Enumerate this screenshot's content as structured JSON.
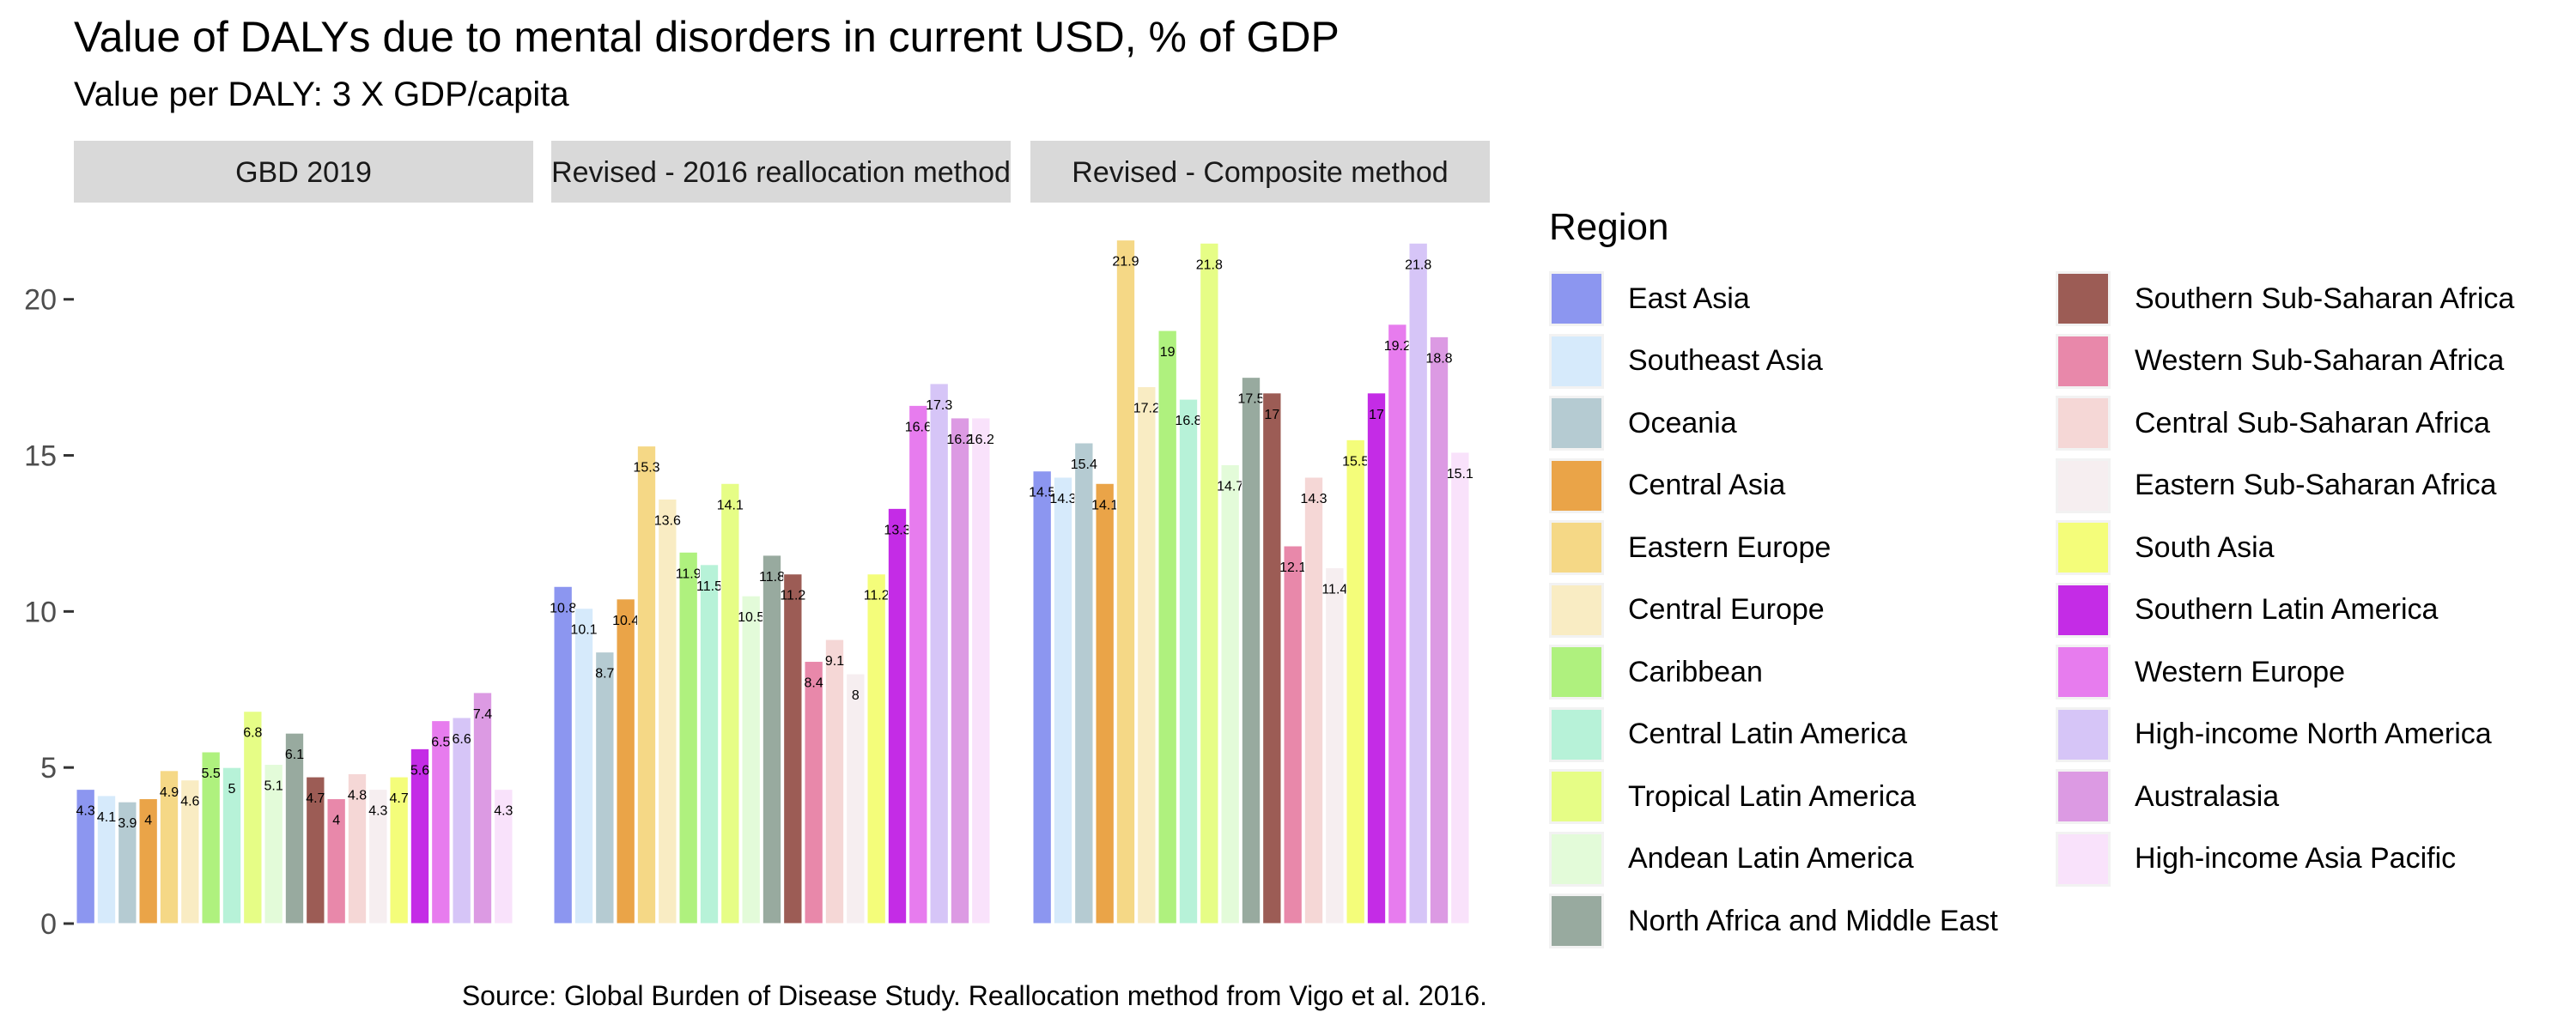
{
  "chart_data": {
    "type": "bar",
    "title": "Value of DALYs due to mental disorders in current USD, % of GDP",
    "subtitle": "Value per DALY: 3 X GDP/capita",
    "caption": "Source: Global Burden of Disease Study. Reallocation method from Vigo et al. 2016.",
    "xlabel": "",
    "ylabel": "",
    "ylim": [
      0,
      22
    ],
    "y_ticks": [
      "0",
      "5",
      "10",
      "15",
      "20"
    ],
    "grid": false,
    "legend_title": "Region",
    "legend_position": "right",
    "categories": [
      "East Asia",
      "Southeast Asia",
      "Oceania",
      "Central Asia",
      "Eastern Europe",
      "Central Europe",
      "Caribbean",
      "Central Latin America",
      "Tropical Latin America",
      "Andean Latin America",
      "North Africa and Middle East",
      "Southern Sub-Saharan Africa",
      "Western Sub-Saharan Africa",
      "Central Sub-Saharan Africa",
      "Eastern Sub-Saharan Africa",
      "South Asia",
      "Southern Latin America",
      "Western Europe",
      "High-income North America",
      "Australasia",
      "High-income Asia Pacific"
    ],
    "colors": [
      "#8c96f0",
      "#d6eafb",
      "#b5cbd2",
      "#eaa448",
      "#f5d886",
      "#f9ecc3",
      "#aff17e",
      "#b7f2d8",
      "#e6fd86",
      "#e3fbd9",
      "#98aa9f",
      "#9c5c55",
      "#e888aa",
      "#f5d7d6",
      "#f6eef0",
      "#f4fd7a",
      "#c42ce6",
      "#e77cee",
      "#d6c5f7",
      "#dc9ae3",
      "#f9e2fb"
    ],
    "panels": [
      {
        "name": "GBD 2019",
        "values": [
          4.3,
          4.1,
          3.9,
          4,
          4.9,
          4.6,
          5.5,
          5,
          6.8,
          5.1,
          6.1,
          4.7,
          4,
          4.8,
          4.3,
          4.7,
          5.6,
          6.5,
          6.6,
          7.4,
          4.3
        ],
        "labels": [
          "4.3",
          "4.1",
          "3.9",
          "4",
          "4.9",
          "4.6",
          "5.5",
          "5",
          "6.8",
          "5.1",
          "6.1",
          "4.7",
          "4",
          "4.8",
          "4.3",
          "4.7",
          "5.6",
          "6.5",
          "6.6",
          "7.4",
          "4.3"
        ]
      },
      {
        "name": "Revised - 2016 reallocation method",
        "values": [
          10.8,
          10.1,
          8.7,
          10.4,
          15.3,
          13.6,
          11.9,
          11.5,
          14.1,
          10.5,
          11.8,
          11.2,
          8.4,
          9.1,
          8,
          11.2,
          13.3,
          16.6,
          17.3,
          16.2,
          16.2
        ],
        "labels": [
          "10.8",
          "10.1",
          "8.7",
          "10.4",
          "15.3",
          "13.6",
          "11.9",
          "11.5",
          "14.1",
          "10.5",
          "11.8",
          "11.2",
          "8.4",
          "9.1",
          "8",
          "11.2",
          "13.3",
          "16.6",
          "17.3",
          "16.2",
          "16.2"
        ]
      },
      {
        "name": "Revised - Composite method",
        "values": [
          14.5,
          14.3,
          15.4,
          14.1,
          21.9,
          17.2,
          19,
          16.8,
          21.8,
          14.7,
          17.5,
          17,
          12.1,
          14.3,
          11.4,
          15.5,
          17,
          19.2,
          21.8,
          18.8,
          15.1
        ],
        "labels": [
          "14.5",
          "14.3",
          "15.4",
          "14.1",
          "21.9",
          "17.2",
          "19",
          "16.8",
          "21.8",
          "14.7",
          "17.5",
          "17",
          "12.1",
          "14.3",
          "11.4",
          "15.5",
          "17",
          "19.2",
          "21.8",
          "18.8",
          "15.1"
        ]
      }
    ]
  }
}
